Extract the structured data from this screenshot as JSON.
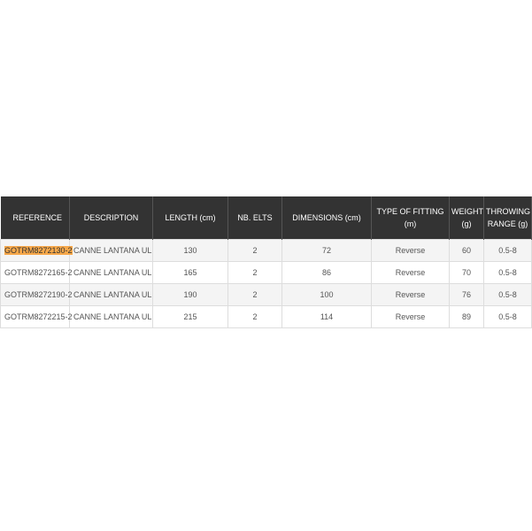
{
  "table": {
    "header": [
      "REFERENCE",
      "DESCRIPTION",
      "LENGTH (cm)",
      "NB. ELTS",
      "DIMENSIONS (cm)",
      "TYPE OF FITTING (m)",
      "WEIGHT (g)",
      "THROWING RANGE (g)"
    ],
    "rows": [
      [
        "GOTRM8272130-2",
        "CANNE LANTANA UL",
        130,
        2,
        72,
        "Reverse",
        60,
        "0.5-8"
      ],
      [
        "GOTRM8272165-2",
        "CANNE LANTANA UL",
        165,
        2,
        86,
        "Reverse",
        70,
        "0.5-8"
      ],
      [
        "GOTRM8272190-2",
        "CANNE LANTANA UL",
        190,
        2,
        100,
        "Reverse",
        76,
        "0.5-8"
      ],
      [
        "GOTRM8272215-2",
        "CANNE LANTANA UL",
        215,
        2,
        114,
        "Reverse",
        89,
        "0.5-8"
      ]
    ]
  }
}
